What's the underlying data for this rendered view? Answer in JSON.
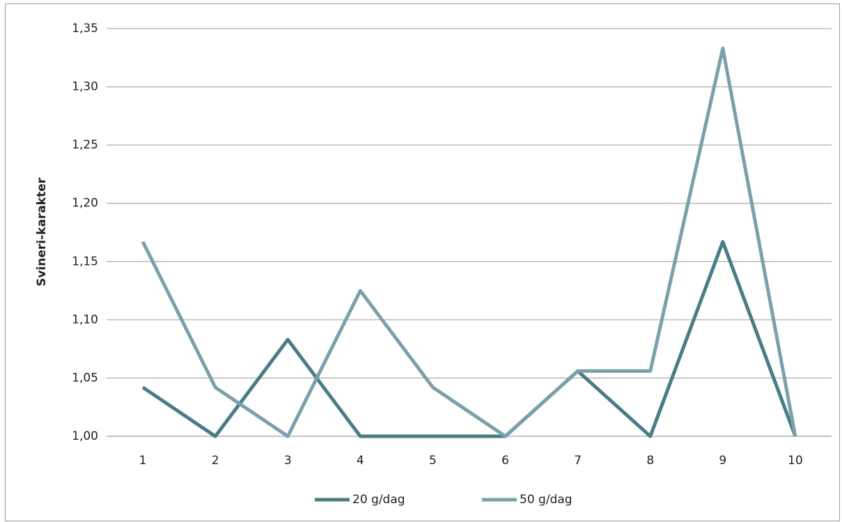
{
  "chart_data": {
    "type": "line",
    "y_label": "Svineri-karakter",
    "categories": [
      "1",
      "2",
      "3",
      "4",
      "5",
      "6",
      "7",
      "8",
      "9",
      "10"
    ],
    "series": [
      {
        "name": "20 g/dag",
        "color": "#4a7c86",
        "values": [
          1.042,
          1.0,
          1.083,
          1.0,
          1.0,
          1.0,
          1.056,
          1.0,
          1.167,
          1.0
        ]
      },
      {
        "name": "50 g/dag",
        "color": "#7ba0ab",
        "values": [
          1.167,
          1.042,
          1.0,
          1.125,
          1.042,
          1.0,
          1.056,
          1.056,
          1.333,
          1.0
        ]
      }
    ],
    "ylim": [
      1.0,
      1.35
    ],
    "yticks": [
      {
        "value": 1.0,
        "label": "1,00"
      },
      {
        "value": 1.05,
        "label": "1,05"
      },
      {
        "value": 1.1,
        "label": "1,10"
      },
      {
        "value": 1.15,
        "label": "1,15"
      },
      {
        "value": 1.2,
        "label": "1,20"
      },
      {
        "value": 1.25,
        "label": "1,25"
      },
      {
        "value": 1.3,
        "label": "1,30"
      },
      {
        "value": 1.35,
        "label": "1,35"
      }
    ],
    "grid": true,
    "legend": "bottom"
  }
}
